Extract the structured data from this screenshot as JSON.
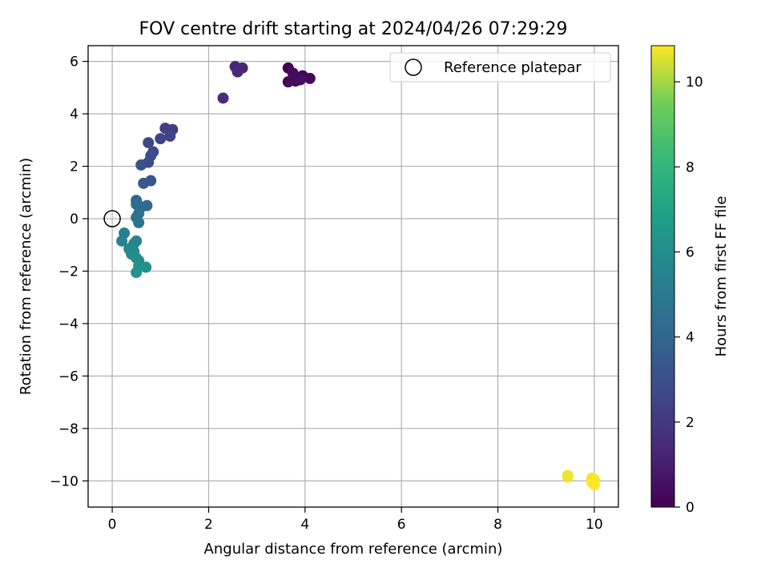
{
  "chart_data": {
    "type": "scatter",
    "title": "FOV centre drift starting at 2024/04/26 07:29:29",
    "xlabel": "Angular distance from reference (arcmin)",
    "ylabel": "Rotation from reference (arcmin)",
    "xlim": [
      -0.5,
      10.5
    ],
    "ylim": [
      -11,
      6.6
    ],
    "xticks": [
      0,
      2,
      4,
      6,
      8,
      10
    ],
    "xtick_labels": [
      "0",
      "2",
      "4",
      "6",
      "8",
      "10"
    ],
    "yticks": [
      -10,
      -8,
      -6,
      -4,
      -2,
      0,
      2,
      4,
      6
    ],
    "ytick_labels": [
      "−10",
      "−8",
      "−6",
      "−4",
      "−2",
      "0",
      "2",
      "4",
      "6"
    ],
    "grid": true,
    "legend": {
      "location": "upper right",
      "entries": [
        "Reference platepar"
      ]
    },
    "reference_point": {
      "x": 0,
      "y": 0,
      "label": "Reference platepar"
    },
    "colorbar": {
      "label": "Hours from first FF file",
      "colormap": "viridis",
      "range": [
        0,
        10.85
      ],
      "ticks": [
        0,
        2,
        4,
        6,
        8,
        10
      ],
      "tick_labels": [
        "0",
        "2",
        "4",
        "6",
        "8",
        "10"
      ]
    },
    "points": [
      {
        "x": 3.65,
        "y": 5.75,
        "hours": 0.05
      },
      {
        "x": 3.85,
        "y": 5.3,
        "hours": 0.1
      },
      {
        "x": 3.95,
        "y": 5.45,
        "hours": 0.15
      },
      {
        "x": 4.1,
        "y": 5.35,
        "hours": 0.2
      },
      {
        "x": 3.65,
        "y": 5.22,
        "hours": 0.25
      },
      {
        "x": 3.8,
        "y": 5.25,
        "hours": 0.3
      },
      {
        "x": 3.75,
        "y": 5.55,
        "hours": 0.35
      },
      {
        "x": 3.9,
        "y": 5.3,
        "hours": 0.4
      },
      {
        "x": 2.7,
        "y": 5.75,
        "hours": 1.25
      },
      {
        "x": 2.55,
        "y": 5.8,
        "hours": 1.3
      },
      {
        "x": 2.6,
        "y": 5.6,
        "hours": 1.35
      },
      {
        "x": 2.3,
        "y": 4.6,
        "hours": 1.55
      },
      {
        "x": 1.25,
        "y": 3.4,
        "hours": 2.25
      },
      {
        "x": 1.1,
        "y": 3.45,
        "hours": 2.35
      },
      {
        "x": 1.2,
        "y": 3.15,
        "hours": 2.45
      },
      {
        "x": 1.0,
        "y": 3.05,
        "hours": 2.55
      },
      {
        "x": 0.75,
        "y": 2.9,
        "hours": 2.65
      },
      {
        "x": 0.85,
        "y": 2.55,
        "hours": 2.75
      },
      {
        "x": 0.8,
        "y": 2.4,
        "hours": 2.85
      },
      {
        "x": 0.75,
        "y": 2.15,
        "hours": 2.95
      },
      {
        "x": 0.6,
        "y": 2.05,
        "hours": 3.1
      },
      {
        "x": 0.8,
        "y": 1.45,
        "hours": 3.3
      },
      {
        "x": 0.65,
        "y": 1.35,
        "hours": 3.4
      },
      {
        "x": 0.5,
        "y": 0.7,
        "hours": 4.0
      },
      {
        "x": 0.6,
        "y": 0.45,
        "hours": 4.15
      },
      {
        "x": 0.72,
        "y": 0.5,
        "hours": 4.25
      },
      {
        "x": 0.5,
        "y": 0.55,
        "hours": 4.35
      },
      {
        "x": 0.55,
        "y": 0.2,
        "hours": 4.5
      },
      {
        "x": 0.5,
        "y": 0.05,
        "hours": 4.6
      },
      {
        "x": 0.55,
        "y": -0.15,
        "hours": 4.7
      },
      {
        "x": 0.25,
        "y": -0.55,
        "hours": 5.3
      },
      {
        "x": 0.2,
        "y": -0.85,
        "hours": 5.4
      },
      {
        "x": 0.5,
        "y": -0.85,
        "hours": 5.5
      },
      {
        "x": 0.45,
        "y": -0.95,
        "hours": 5.55
      },
      {
        "x": 0.35,
        "y": -1.15,
        "hours": 5.65
      },
      {
        "x": 0.45,
        "y": -1.25,
        "hours": 5.75
      },
      {
        "x": 0.4,
        "y": -1.35,
        "hours": 5.85
      },
      {
        "x": 0.5,
        "y": -1.5,
        "hours": 5.95
      },
      {
        "x": 0.55,
        "y": -1.6,
        "hours": 6.05
      },
      {
        "x": 0.55,
        "y": -1.8,
        "hours": 6.15
      },
      {
        "x": 0.7,
        "y": -1.85,
        "hours": 6.2
      },
      {
        "x": 0.5,
        "y": -2.05,
        "hours": 6.3
      },
      {
        "x": 9.45,
        "y": -9.8,
        "hours": 10.7
      },
      {
        "x": 9.45,
        "y": -9.85,
        "hours": 10.72
      },
      {
        "x": 9.95,
        "y": -9.9,
        "hours": 10.75
      },
      {
        "x": 10.0,
        "y": -9.95,
        "hours": 10.78
      },
      {
        "x": 9.95,
        "y": -10.05,
        "hours": 10.8
      },
      {
        "x": 10.0,
        "y": -10.15,
        "hours": 10.85
      }
    ]
  }
}
